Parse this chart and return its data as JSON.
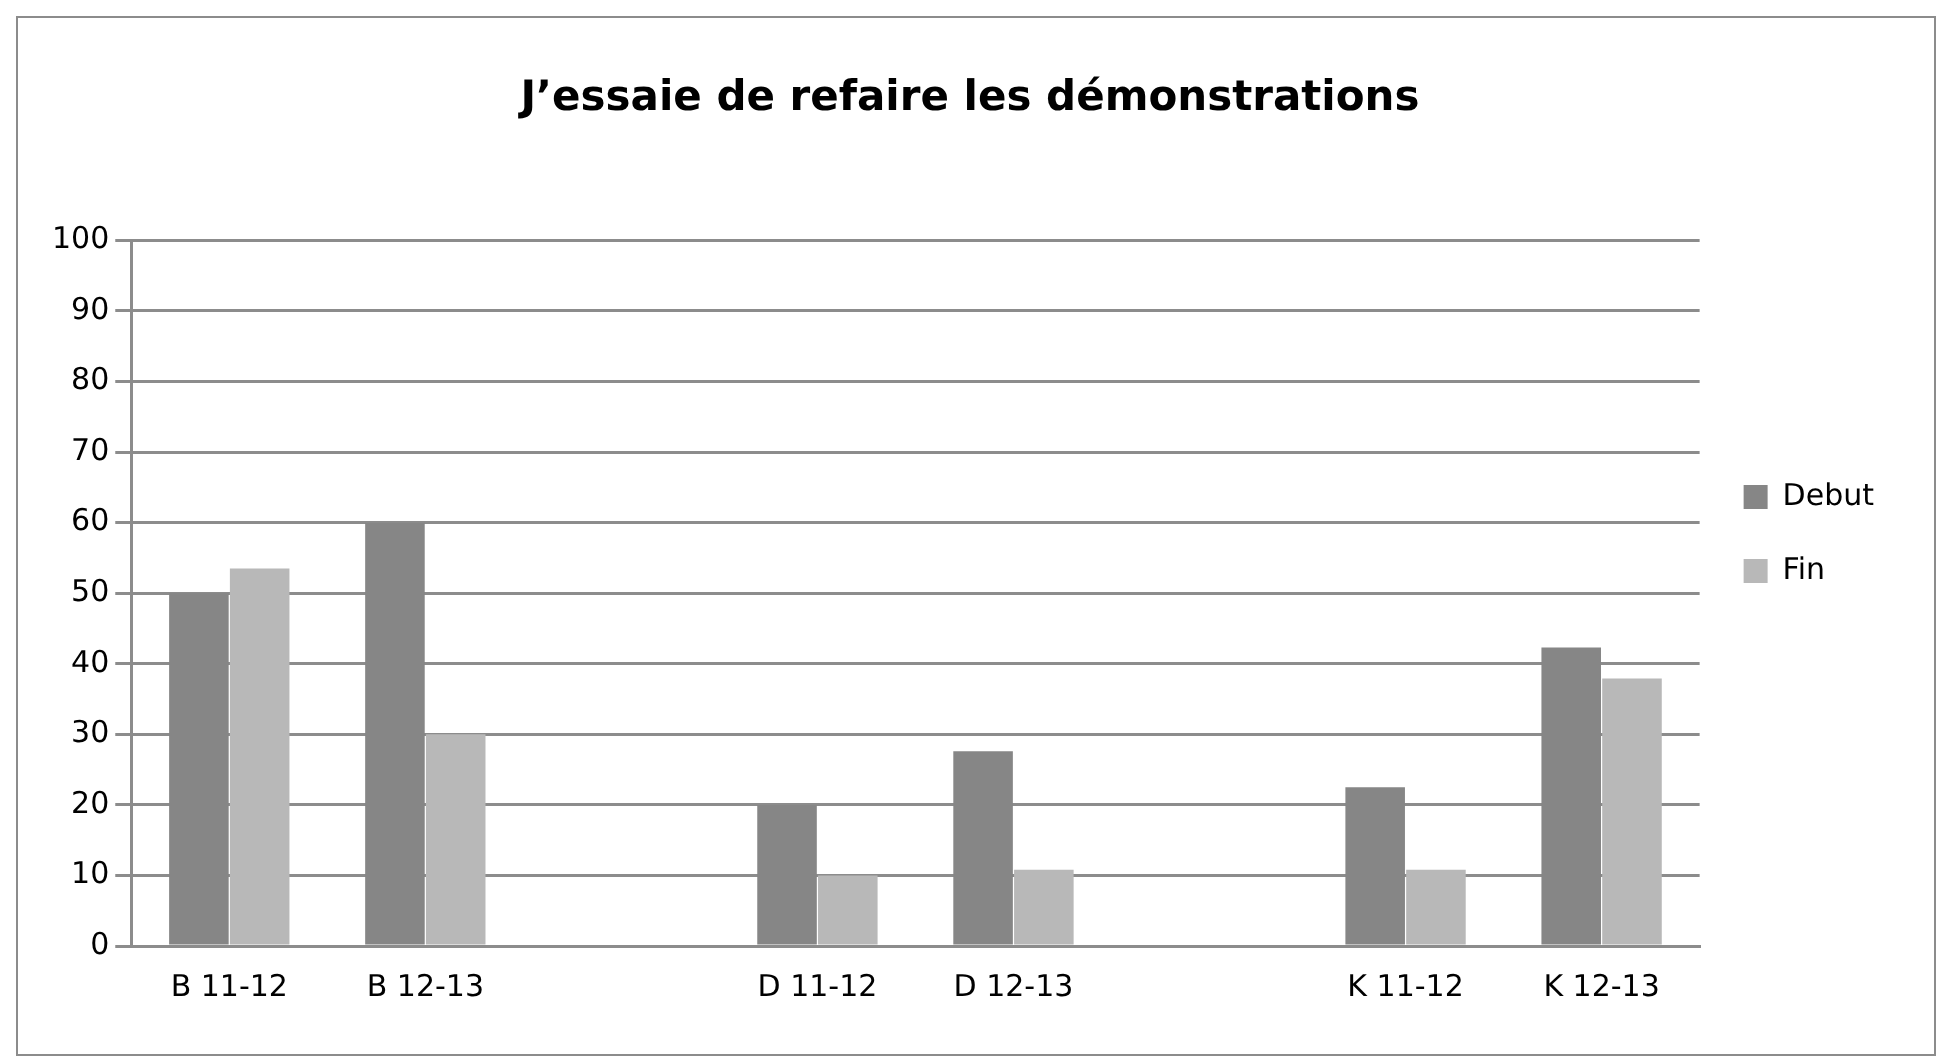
{
  "chart_data": {
    "type": "bar",
    "title": "J’essaie de refaire les démonstrations",
    "categories": [
      "B 11-12",
      "B 12-13",
      null,
      "D 11-12",
      "D 12-13",
      null,
      "K 11-12",
      "K 12-13"
    ],
    "series": [
      {
        "name": "Debut",
        "color": "#868686",
        "values": [
          50,
          60,
          null,
          20,
          27.6,
          null,
          22.5,
          42.3
        ]
      },
      {
        "name": "Fin",
        "color": "#b8b8b8",
        "values": [
          53.5,
          30,
          null,
          10,
          10.8,
          null,
          10.8,
          37.9
        ]
      }
    ],
    "ylim": [
      0,
      100
    ],
    "yticks": [
      0,
      10,
      20,
      30,
      40,
      50,
      60,
      70,
      80,
      90,
      100
    ],
    "grid": "y",
    "legend": "right"
  }
}
